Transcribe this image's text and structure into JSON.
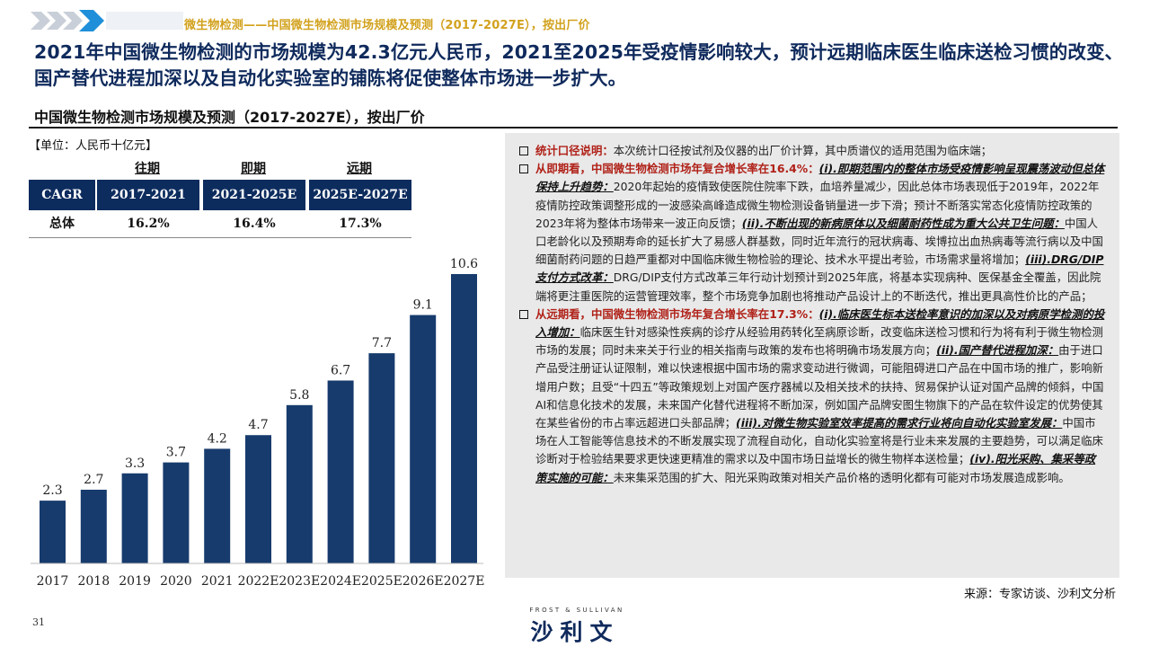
{
  "header": {
    "breadcrumb": "微生物检测——中国微生物检测市场规模及预测（2017-2027E），按出厂价",
    "headline": "2021年中国微生物检测的市场规模为42.3亿元人民币，2021至2025年受疫情影响较大，预计远期临床医生临床送检习惯的改变、国产替代进程加深以及自动化实验室的铺陈将促使整体市场进一步扩大。",
    "accent": "#d2a21e",
    "navy": "#0f2a5c"
  },
  "chart_title": "中国微生物检测市场规模及预测（2017-2027E），按出厂价",
  "unit": "【单位：人民币十亿元】",
  "cagr": {
    "periods": [
      "往期",
      "即期",
      "远期"
    ],
    "label": "CAGR",
    "ranges": [
      "2017-2021",
      "2021-2025E",
      "2025E-2027E"
    ],
    "row_label": "总体",
    "values": [
      "16.2%",
      "16.4%",
      "17.3%"
    ]
  },
  "chart_data": {
    "type": "bar",
    "title": "中国微生物检测市场规模及预测（2017-2027E），按出厂价",
    "ylabel": "人民币十亿元",
    "categories": [
      "2017",
      "2018",
      "2019",
      "2020",
      "2021",
      "2022E",
      "2023E",
      "2024E",
      "2025E",
      "2026E",
      "2027E"
    ],
    "values": [
      2.3,
      2.7,
      3.3,
      3.7,
      4.2,
      4.7,
      5.8,
      6.7,
      7.7,
      9.1,
      10.6
    ],
    "value_labels": [
      "2.3",
      "2.7",
      "3.3",
      "3.7",
      "4.2",
      "4.7",
      "5.8",
      "6.7",
      "7.7",
      "9.1",
      "10.6"
    ],
    "ylim": [
      0,
      10.6
    ],
    "bar_color": "#173b6d",
    "grid": false
  },
  "panel": {
    "p1": {
      "label": "统计口径说明：",
      "text": "本次统计口径按试剂及仪器的出厂价计算，其中质谱仪的适用范围为临床端；"
    },
    "p2": {
      "lead": "从即期看，中国微生物检测市场年复合增长率在16.4%：",
      "u1": "(i).即期范围内的整体市场受疫情影响呈现震荡波动但总体保持上升趋势：",
      "t1": "2020年起始的疫情致使医院住院率下跌，血培养量减少，因此总体市场表现低于2019年，2022年疫情防控政策调整形成的一波感染高峰造成微生物检测设备销量进一步下滑；预计不断落实常态化疫情防控政策的2023年将为整体市场带来一波正向反馈；",
      "u2": "(ii).不断出现的新病原体以及细菌耐药性成为重大公共卫生问题：",
      "t2": "中国人口老龄化以及预期寿命的延长扩大了易感人群基数，同时近年流行的冠状病毒、埃博拉出血热病毒等流行病以及中国细菌耐药问题的日趋严重都对中国临床微生物检验的理论、技术水平提出考验，市场需求量将增加；",
      "u3": "(iii).DRG/DIP支付方式改革：",
      "t3": "DRG/DIP支付方式改革三年行动计划预计到2025年底，将基本实现病种、医保基金全覆盖，因此院端将更注重医院的运营管理效率，整个市场竞争加剧也将推动产品设计上的不断迭代，推出更具高性价比的产品；"
    },
    "p3": {
      "lead": "从远期看，中国微生物检测市场年复合增长率在17.3%：",
      "u1": "(i).临床医生标本送检率意识的加深以及对病原学检测的投入增加：",
      "t1": "临床医生针对感染性疾病的诊疗从经验用药转化至病原诊断，改变临床送检习惯和行为将有利于微生物检测市场的发展；同时未来关于行业的相关指南与政策的发布也将明确市场发展方向；",
      "u2": "(ii).国产替代进程加深：",
      "t2": "由于进口产品受注册证认证限制，难以快速根据中国市场的需求变动进行微调，可能阻碍进口产品在中国市场的推广，影响新增用户数；且受“十四五”等政策规划上对国产医疗器械以及相关技术的扶持、贸易保护认证对国产品牌的倾斜，中国AI和信息化技术的发展，未来国产化替代进程将不断加深，例如国产品牌安图生物旗下的产品在软件设定的优势使其在某些省份的市占率远超进口头部品牌；",
      "u3": "(iii).对微生物实验室效率提高的需求行业将向自动化实验室发展：",
      "t3": "中国市场在人工智能等信息技术的不断发展实现了流程自动化，自动化实验室将是行业未来发展的主要趋势，可以满足临床诊断对于检验结果要求更快速更精准的需求以及中国市场日益增长的微生物样本送检量；",
      "u4": "(iv).阳光采购、集采等政策实施的可能：",
      "t4": "未来集采范围的扩大、阳光采购政策对相关产品价格的透明化都有可能对市场发展造成影响。"
    }
  },
  "footer": {
    "source": "来源：专家访谈、沙利文分析",
    "page": "31",
    "logo_small": "FROST & SULLIVAN",
    "logo_main": "沙利文"
  }
}
